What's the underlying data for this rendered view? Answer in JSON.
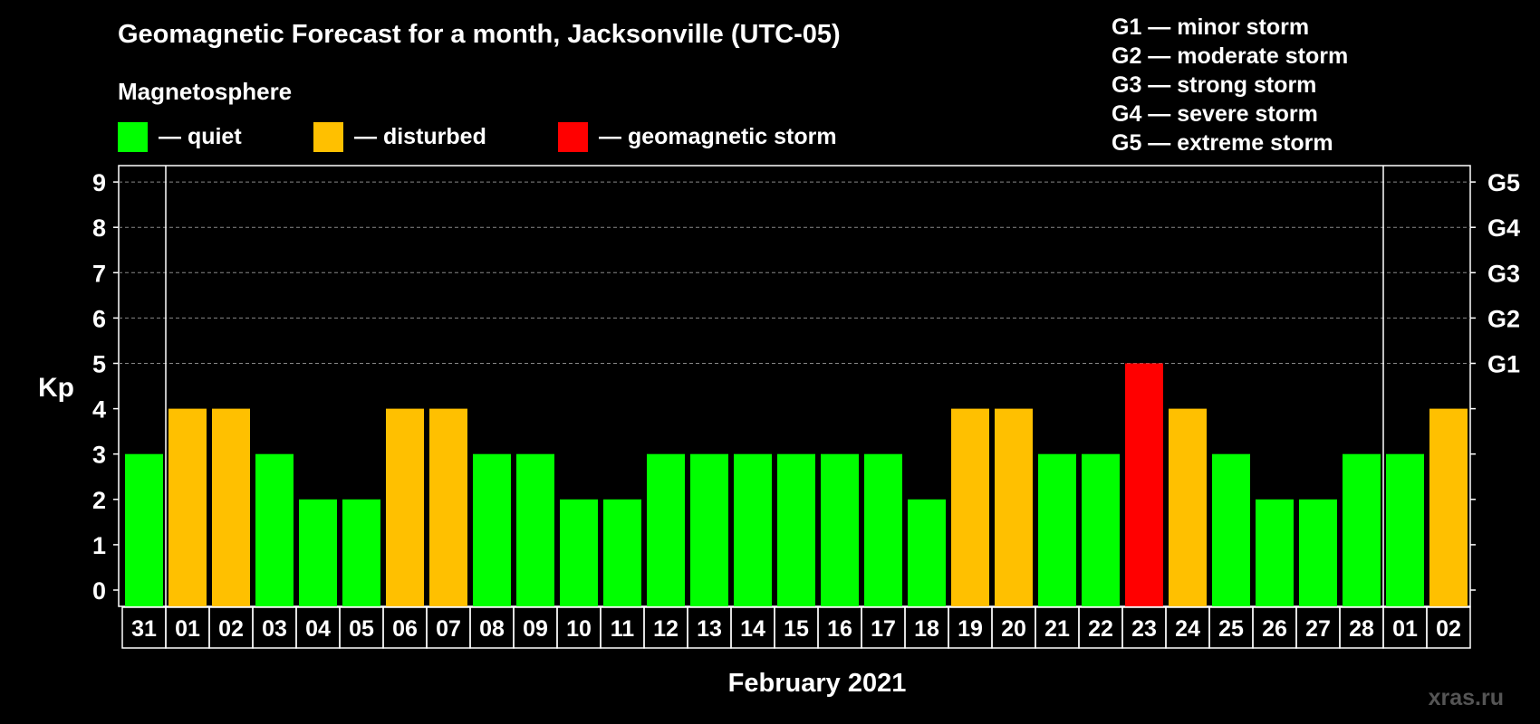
{
  "title": "Geomagnetic Forecast for a month, Jacksonville (UTC-05)",
  "magnetosphere_label": "Magnetosphere",
  "legend": [
    {
      "label": "— quiet",
      "color": "#00ff00"
    },
    {
      "label": "— disturbed",
      "color": "#ffc000"
    },
    {
      "label": "— geomagnetic storm",
      "color": "#ff0000"
    }
  ],
  "storm_scale": [
    "G1 — minor storm",
    "G2 — moderate storm",
    "G3 — strong storm",
    "G4 — severe storm",
    "G5 — extreme storm"
  ],
  "watermark": "xras.ru",
  "colors": {
    "quiet": "#00ff00",
    "disturbed": "#ffc000",
    "storm": "#ff0000"
  },
  "chart_data": {
    "type": "bar",
    "title": "Geomagnetic Forecast for a month, Jacksonville (UTC-05)",
    "xlabel": "February 2021",
    "ylabel": "Kp",
    "ylim": [
      0,
      9
    ],
    "yticks": [
      "0",
      "1",
      "2",
      "3",
      "4",
      "5",
      "6",
      "7",
      "8",
      "9"
    ],
    "right_ticks": [
      {
        "kp": 5,
        "label": "G1"
      },
      {
        "kp": 6,
        "label": "G2"
      },
      {
        "kp": 7,
        "label": "G3"
      },
      {
        "kp": 8,
        "label": "G4"
      },
      {
        "kp": 9,
        "label": "G5"
      }
    ],
    "categories": [
      "31",
      "01",
      "02",
      "03",
      "04",
      "05",
      "06",
      "07",
      "08",
      "09",
      "10",
      "11",
      "12",
      "13",
      "14",
      "15",
      "16",
      "17",
      "18",
      "19",
      "20",
      "21",
      "22",
      "23",
      "24",
      "25",
      "26",
      "27",
      "28",
      "01",
      "02"
    ],
    "values": [
      3,
      4,
      4,
      3,
      2,
      2,
      4,
      4,
      3,
      3,
      2,
      2,
      3,
      3,
      3,
      3,
      3,
      3,
      2,
      4,
      4,
      3,
      3,
      5,
      4,
      3,
      2,
      2,
      3,
      3,
      4
    ],
    "status": [
      "quiet",
      "disturbed",
      "disturbed",
      "quiet",
      "quiet",
      "quiet",
      "disturbed",
      "disturbed",
      "quiet",
      "quiet",
      "quiet",
      "quiet",
      "quiet",
      "quiet",
      "quiet",
      "quiet",
      "quiet",
      "quiet",
      "quiet",
      "disturbed",
      "disturbed",
      "quiet",
      "quiet",
      "storm",
      "disturbed",
      "quiet",
      "quiet",
      "quiet",
      "quiet",
      "quiet",
      "disturbed"
    ],
    "month_boundaries_after_index": [
      0,
      28
    ]
  }
}
